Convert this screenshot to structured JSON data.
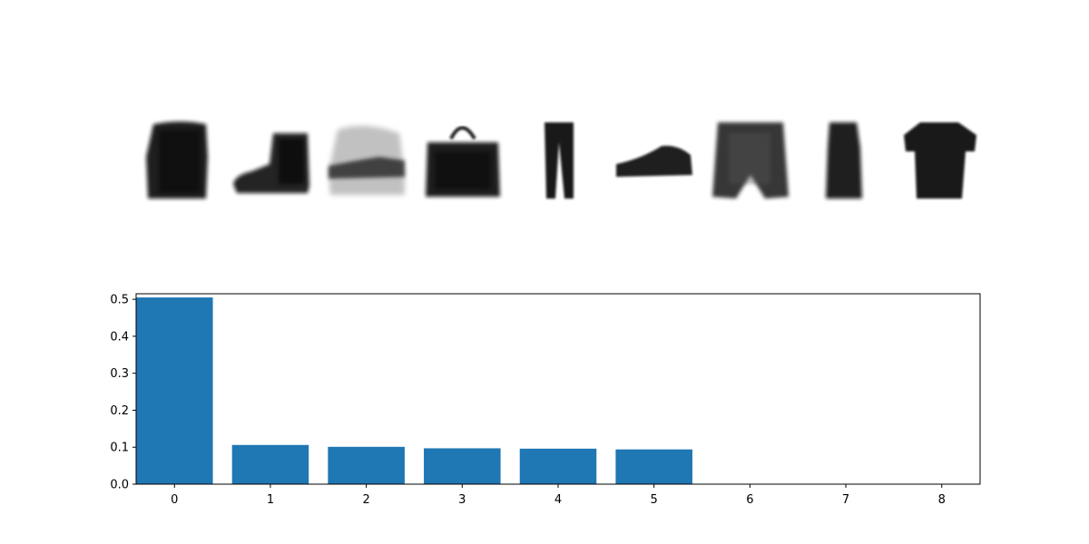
{
  "images": [
    {
      "name": "long-sleeve-shirt",
      "description": "blurry dark long-sleeve top"
    },
    {
      "name": "ankle-boot",
      "description": "blurry dark ankle boot"
    },
    {
      "name": "sandal-sneaker",
      "description": "blurry faded shoe"
    },
    {
      "name": "bag",
      "description": "blurry dark handbag"
    },
    {
      "name": "trouser",
      "description": "dark trousers"
    },
    {
      "name": "sneaker",
      "description": "dark low sneaker"
    },
    {
      "name": "shirt",
      "description": "blurry patterned shirt"
    },
    {
      "name": "dress",
      "description": "dark dress"
    },
    {
      "name": "t-shirt",
      "description": "dark t-shirt"
    }
  ],
  "chart_data": {
    "type": "bar",
    "categories": [
      "0",
      "1",
      "2",
      "3",
      "4",
      "5",
      "6",
      "7",
      "8"
    ],
    "values": [
      0.505,
      0.106,
      0.101,
      0.097,
      0.096,
      0.094,
      0.0,
      0.0,
      0.0
    ],
    "title": "",
    "xlabel": "",
    "ylabel": "",
    "ylim": [
      0,
      0.515
    ],
    "yticks": [
      0.0,
      0.1,
      0.2,
      0.3,
      0.4,
      0.5
    ],
    "ytick_labels": [
      "0.0",
      "0.1",
      "0.2",
      "0.3",
      "0.4",
      "0.5"
    ],
    "grid": false,
    "bar_color": "#1f77b4"
  }
}
